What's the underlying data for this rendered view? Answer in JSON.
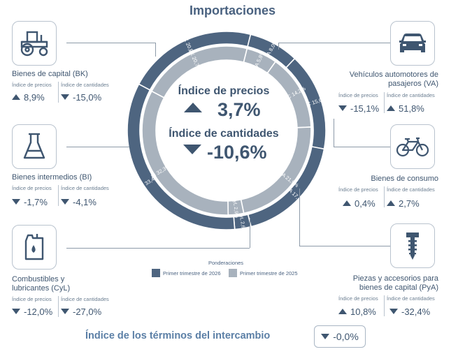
{
  "title": "Importaciones",
  "headers": {
    "prices": "Índice de precios",
    "quantities": "Índice de cantidades"
  },
  "center": {
    "price_label": "Índice de precios",
    "price_value": "3,7%",
    "qty_label": "Índice de cantidades",
    "qty_value": "-10,6%"
  },
  "categories": {
    "bk": {
      "name": "Bienes de capital (BK)",
      "price": "8,9%",
      "qty": "-15,0%",
      "icon": "tractor-icon"
    },
    "bi": {
      "name": "Bienes intermedios (BI)",
      "price": "-1,7%",
      "qty": "-4,1%",
      "icon": "flask-icon"
    },
    "cyl": {
      "name_line1": "Combustibles y",
      "name_line2": "lubricantes (CyL)",
      "price": "-12,0%",
      "qty": "-27,0%",
      "icon": "fuel-can-icon"
    },
    "va": {
      "name_line1": "Vehículos automotores de",
      "name_line2": "pasajeros (VA)",
      "price": "-15,1%",
      "qty": "51,8%",
      "icon": "car-icon"
    },
    "bc": {
      "name": "Bienes de consumo",
      "price": "0,4%",
      "qty": "2,7%",
      "icon": "bicycle-icon"
    },
    "pya": {
      "name_line1": "Piezas y accesorios para",
      "name_line2": "bienes de capital (PyA)",
      "price": "10,8%",
      "qty": "-32,4%",
      "icon": "screw-icon"
    }
  },
  "legend": {
    "title": "Ponderaciones",
    "current": "Primer trimestre de 2026",
    "previous": "Primer trimestre de 2025"
  },
  "terms": {
    "label": "Índice de los términos del intercambio",
    "value": "-0,0%"
  },
  "colors": {
    "current": "#4e6580",
    "previous": "#a8b2bd",
    "text": "#3f5670",
    "accent": "#5b7fa6"
  },
  "chart_data": {
    "type": "pie",
    "title": "Ponderaciones",
    "series": [
      {
        "name": "Primer trimestre de 2026",
        "categories": [
          "VA",
          "BC",
          "PyA",
          "CyL",
          "BI",
          "BK"
        ],
        "labels": [
          "VA 8,0%",
          "BC 15,6%",
          "PyA 17,7%",
          "CyL 2,6%",
          "BI 33,4%",
          "BK 20,7%"
        ],
        "values": [
          8.0,
          15.6,
          17.7,
          2.6,
          33.4,
          20.7
        ]
      },
      {
        "name": "Primer trimestre de 2025",
        "categories": [
          "VA",
          "BC",
          "PyA",
          "CyL",
          "BI",
          "BK"
        ],
        "labels": [
          "VA 5,8%",
          "BC 14,2%",
          "PyA 21,9%",
          "CyL 2,9%",
          "BI 32,3%",
          "BK 20,7%"
        ],
        "values": [
          5.8,
          14.2,
          21.9,
          2.9,
          32.3,
          20.7
        ]
      }
    ]
  }
}
